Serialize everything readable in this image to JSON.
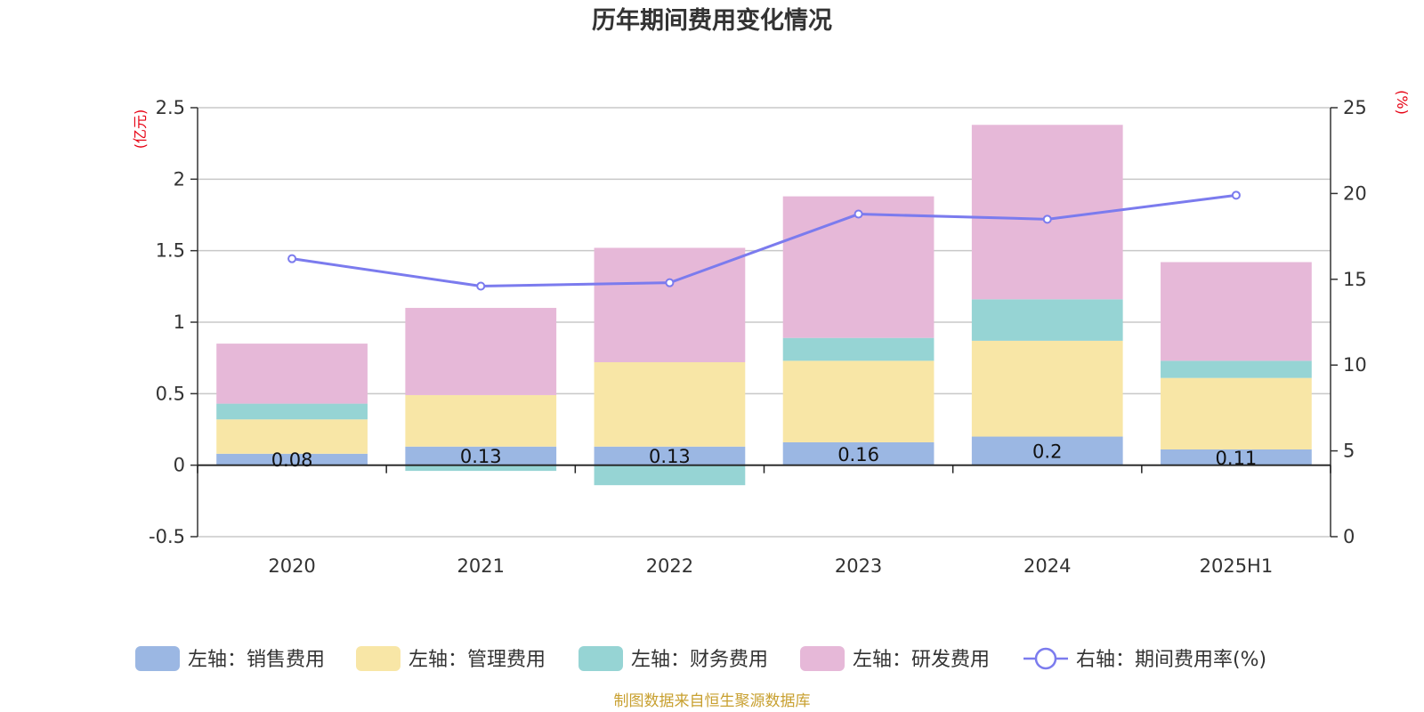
{
  "title": "历年期间费用变化情况",
  "footer": "制图数据来自恒生聚源数据库",
  "chart_data": {
    "type": "bar",
    "stacked": true,
    "categories": [
      "2020",
      "2021",
      "2022",
      "2023",
      "2024",
      "2025H1"
    ],
    "left_axis": {
      "unit": "(亿元)",
      "min": -0.5,
      "max": 2.5,
      "ticks": [
        "-0.5",
        "0",
        "0.5",
        "1",
        "1.5",
        "2",
        "2.5"
      ]
    },
    "right_axis": {
      "unit": "(%)",
      "min": 0,
      "max": 25,
      "ticks": [
        "0",
        "5",
        "10",
        "15",
        "20",
        "25"
      ]
    },
    "grid": true,
    "legend_position": "bottom",
    "series": [
      {
        "name": "左轴：销售费用",
        "axis": "left",
        "color": "#9bb7e3",
        "values": [
          0.08,
          0.13,
          0.13,
          0.16,
          0.2,
          0.11
        ],
        "labels": [
          "0.08",
          "0.13",
          "0.13",
          "0.16",
          "0.2",
          "0.11"
        ]
      },
      {
        "name": "左轴：管理费用",
        "axis": "left",
        "color": "#f8e6a6",
        "values": [
          0.24,
          0.36,
          0.59,
          0.57,
          0.67,
          0.5
        ]
      },
      {
        "name": "左轴：财务费用",
        "axis": "left",
        "color": "#96d4d4",
        "values": [
          0.11,
          -0.04,
          -0.14,
          0.16,
          0.29,
          0.12
        ]
      },
      {
        "name": "左轴：研发费用",
        "axis": "left",
        "color": "#e6b8d8",
        "values": [
          0.42,
          0.61,
          0.8,
          0.99,
          1.22,
          0.69
        ]
      },
      {
        "name": "右轴：期间费用率(%)",
        "axis": "right",
        "type": "line",
        "color": "#7b7bee",
        "values": [
          16.2,
          14.6,
          14.8,
          18.8,
          18.5,
          19.9
        ]
      }
    ]
  }
}
